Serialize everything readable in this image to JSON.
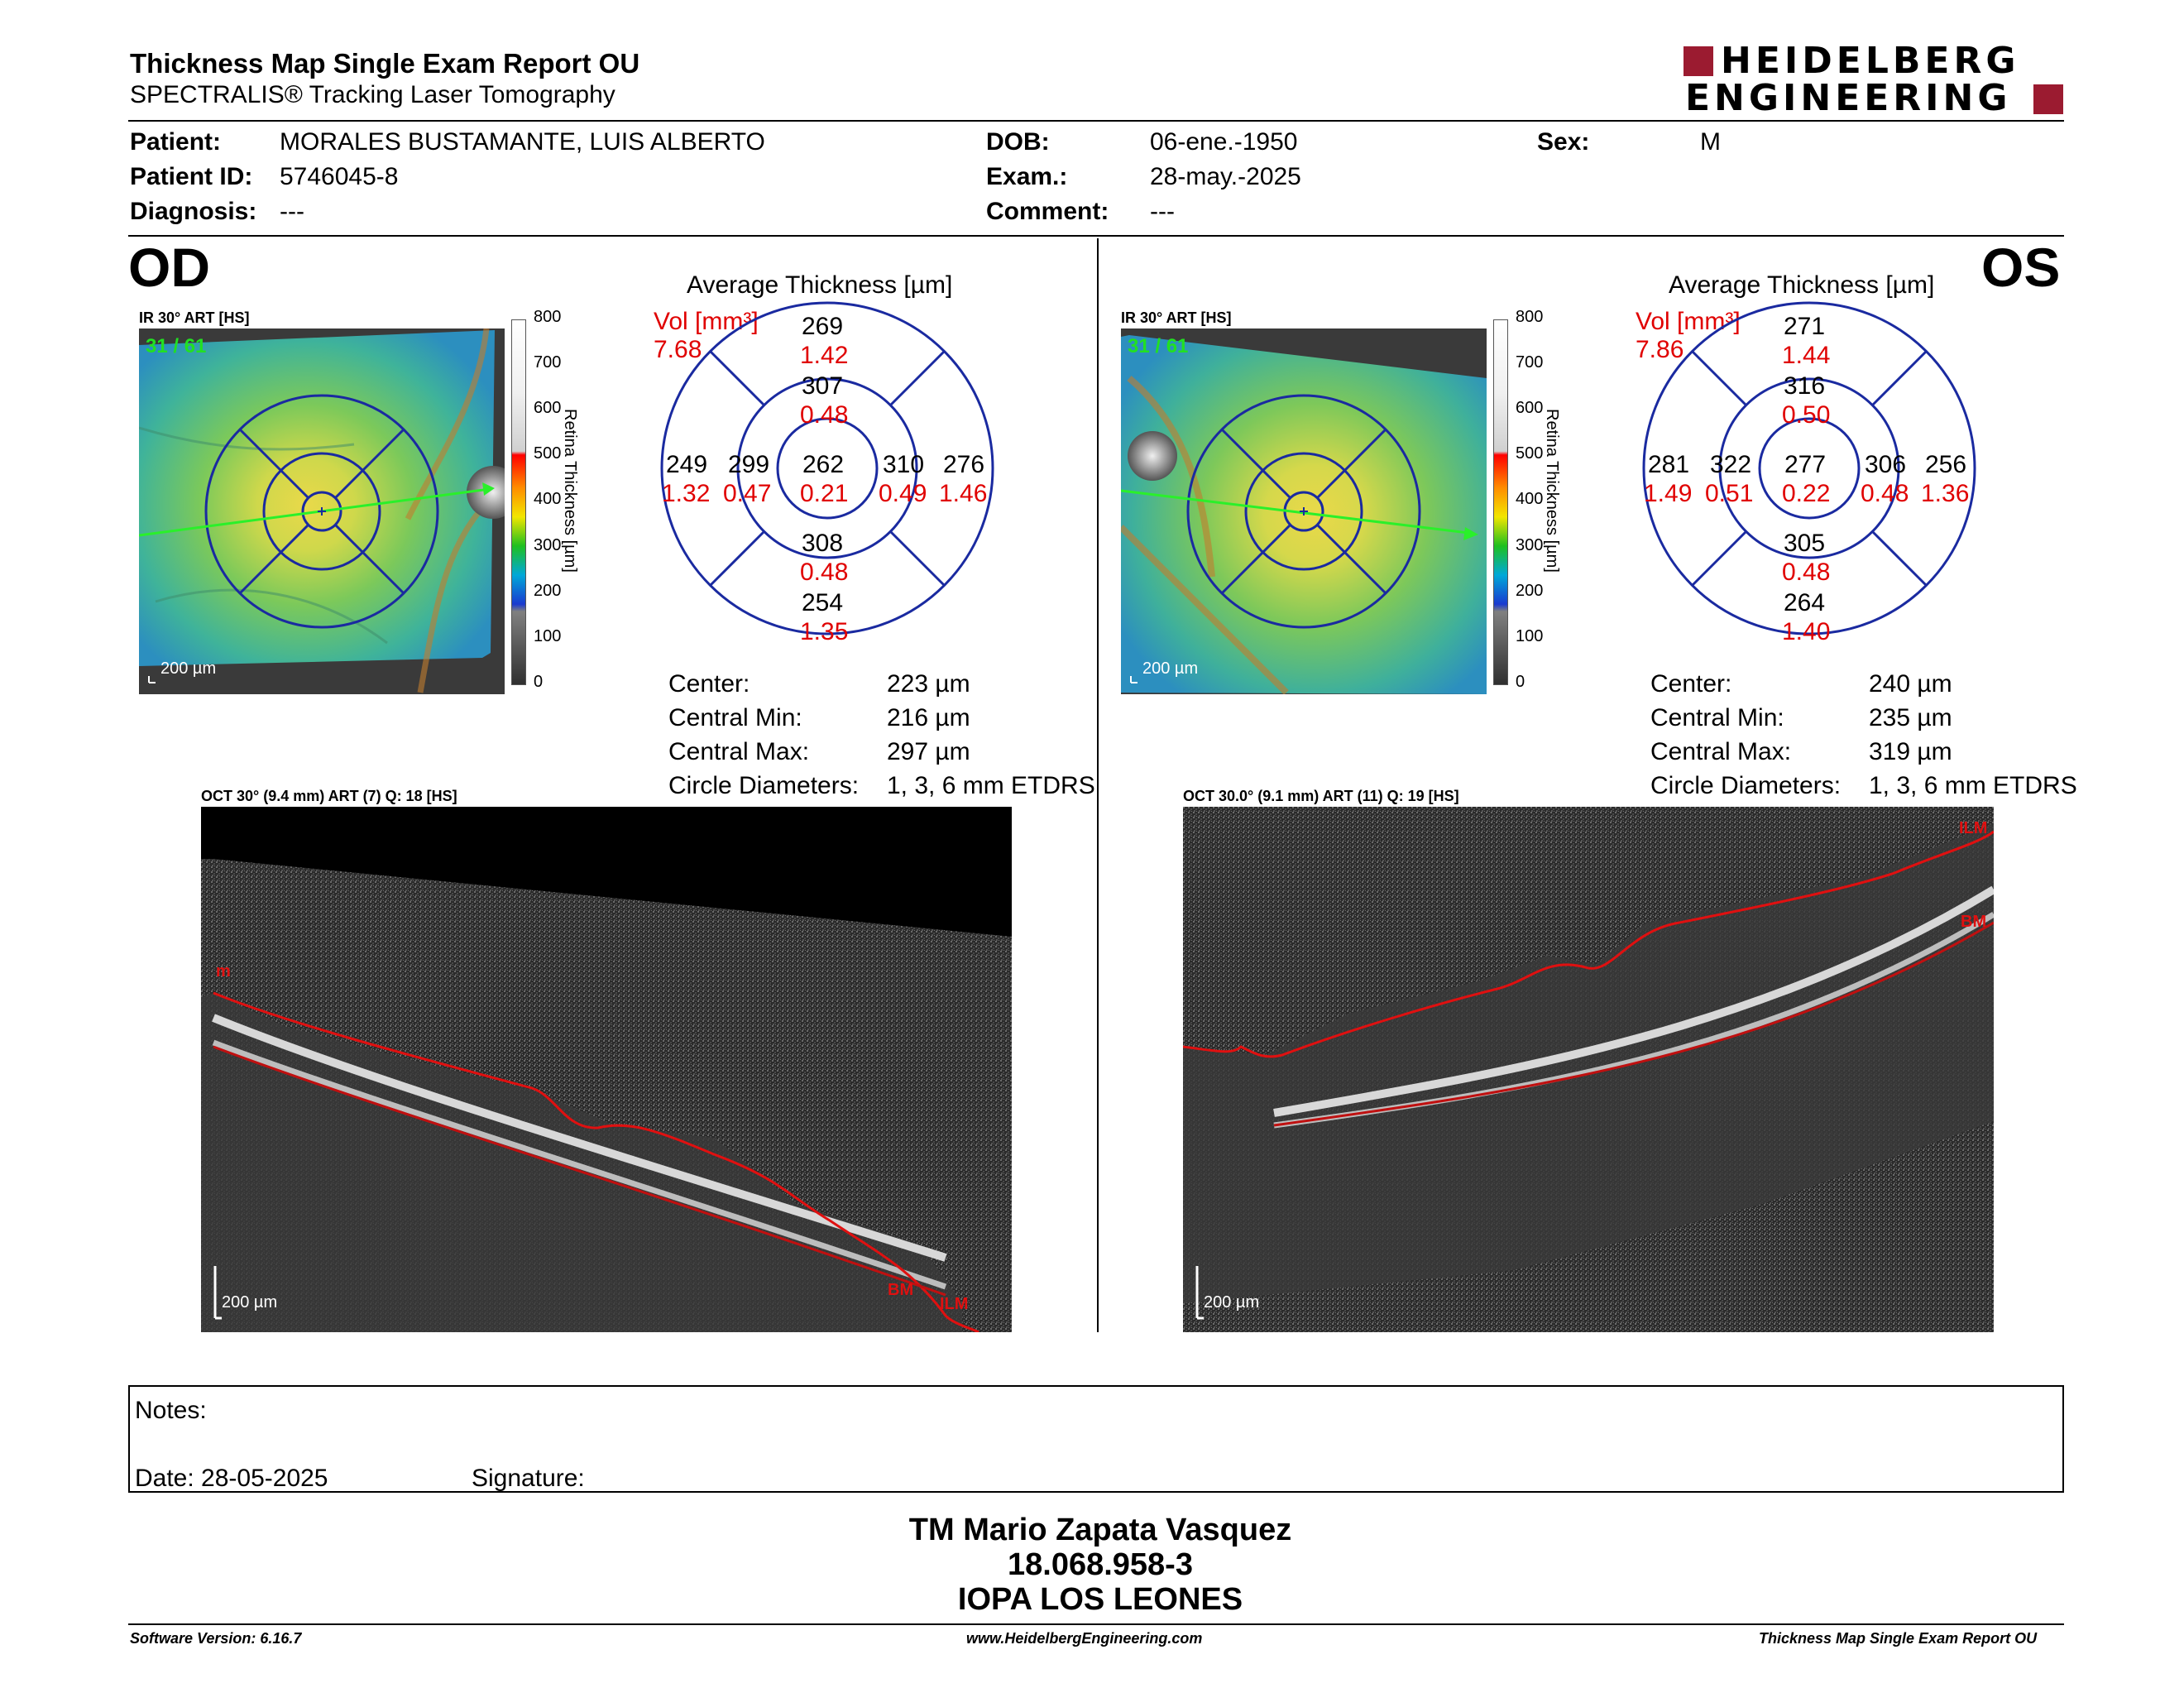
{
  "header": {
    "title": "Thickness Map Single Exam Report OU",
    "subtitle": "SPECTRALIS® Tracking Laser Tomography",
    "logo_line1": "HEIDELBERG",
    "logo_line2": "ENGINEERING",
    "colors": {
      "logo_red": "#9b1b30"
    }
  },
  "patient": {
    "patient_label": "Patient:",
    "patient_value": "MORALES BUSTAMANTE, LUIS ALBERTO",
    "id_label": "Patient ID:",
    "id_value": "5746045-8",
    "diagnosis_label": "Diagnosis:",
    "diagnosis_value": "---",
    "dob_label": "DOB:",
    "dob_value": "06-ene.-1950",
    "exam_label": "Exam.:",
    "exam_value": "28-may.-2025",
    "comment_label": "Comment:",
    "comment_value": "---",
    "sex_label": "Sex:",
    "sex_value": "M"
  },
  "od": {
    "eye": "OD",
    "ir_label": "IR 30° ART [HS]",
    "frame_counter": "31 / 61",
    "scale_bar": "200 µm",
    "colorbar_ticks": [
      "800",
      "700",
      "600",
      "500",
      "400",
      "300",
      "200",
      "100",
      "0"
    ],
    "colorbar_title": "Retina Thickness [µm]",
    "avg_title": "Average Thickness [µm]",
    "vol_label": "Vol [mm³]",
    "vol_value": "7.68",
    "sectors": {
      "outer_sup": "269",
      "outer_sup_vol": "1.42",
      "inner_sup": "307",
      "inner_sup_vol": "0.48",
      "outer_temp": "249",
      "outer_temp_vol": "1.32",
      "inner_temp": "299",
      "inner_temp_vol": "0.47",
      "center": "262",
      "center_vol": "0.21",
      "inner_nas": "310",
      "inner_nas_vol": "0.49",
      "outer_nas": "276",
      "outer_nas_vol": "1.46",
      "inner_inf": "308",
      "inner_inf_vol": "0.48",
      "outer_inf": "254",
      "outer_inf_vol": "1.35"
    },
    "stats": {
      "center_label": "Center:",
      "center_value": "223 µm",
      "min_label": "Central Min:",
      "min_value": "216 µm",
      "max_label": "Central Max:",
      "max_value": "297 µm",
      "diam_label": "Circle Diameters:",
      "diam_value": "1, 3, 6 mm ETDRS"
    },
    "oct_label": "OCT 30° (9.4 mm) ART (7) Q: 18 [HS]",
    "oct_scale": "200 µm",
    "oct_marks": {
      "m": "m",
      "bm": "BM",
      "ilm": "ILM"
    }
  },
  "os": {
    "eye": "OS",
    "ir_label": "IR 30° ART [HS]",
    "frame_counter": "31 / 61",
    "scale_bar": "200 µm",
    "colorbar_ticks": [
      "800",
      "700",
      "600",
      "500",
      "400",
      "300",
      "200",
      "100",
      "0"
    ],
    "colorbar_title": "Retina Thickness [µm]",
    "avg_title": "Average Thickness [µm]",
    "vol_label": "Vol [mm³]",
    "vol_value": "7.86",
    "sectors": {
      "outer_sup": "271",
      "outer_sup_vol": "1.44",
      "inner_sup": "316",
      "inner_sup_vol": "0.50",
      "outer_temp": "281",
      "outer_temp_vol": "1.49",
      "inner_temp": "322",
      "inner_temp_vol": "0.51",
      "center": "277",
      "center_vol": "0.22",
      "inner_nas": "306",
      "inner_nas_vol": "0.48",
      "outer_nas": "256",
      "outer_nas_vol": "1.36",
      "inner_inf": "305",
      "inner_inf_vol": "0.48",
      "outer_inf": "264",
      "outer_inf_vol": "1.40"
    },
    "stats": {
      "center_label": "Center:",
      "center_value": "240 µm",
      "min_label": "Central Min:",
      "min_value": "235 µm",
      "max_label": "Central Max:",
      "max_value": "319 µm",
      "diam_label": "Circle Diameters:",
      "diam_value": "1, 3, 6 mm ETDRS"
    },
    "oct_label": "OCT 30.0° (9.1 mm) ART (11) Q: 19 [HS]",
    "oct_scale": "200 µm",
    "oct_marks": {
      "ilm": "ILM",
      "bm": "BM"
    }
  },
  "notes": {
    "notes_label": "Notes:",
    "date_label": "Date: 28-05-2025",
    "signature_label": "Signature:"
  },
  "signature_block": {
    "name": "TM Mario Zapata Vasquez",
    "rut": "18.068.958-3",
    "institution": "IOPA LOS LEONES"
  },
  "footer": {
    "software": "Software Version: 6.16.7",
    "website": "www.HeidelbergEngineering.com",
    "report_name": "Thickness Map Single Exam Report OU"
  }
}
